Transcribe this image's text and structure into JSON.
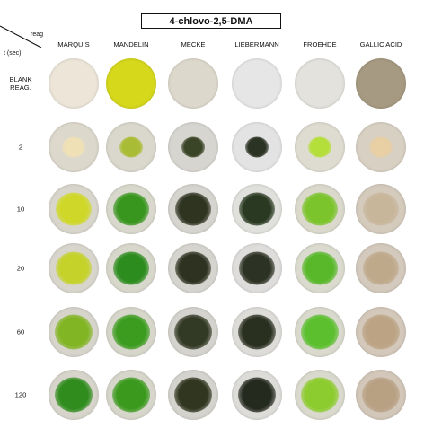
{
  "title": "4-chlovo-2,5-DMA",
  "corner": {
    "reag": "reag",
    "t": "t (sec)"
  },
  "reagents": [
    "MARQUIS",
    "MANDELIN",
    "MECKE",
    "LIEBERMANN",
    "FROEHDE",
    "GALLIC ACID"
  ],
  "rows": [
    {
      "label": "BLANK\nREAG.",
      "dishes": [
        {
          "bg": "#ece5d8",
          "blob": null
        },
        {
          "bg": "#d6d81c",
          "blob": null
        },
        {
          "bg": "#ddd8cc",
          "blob": null
        },
        {
          "bg": "#e6e6e6",
          "blob": null
        },
        {
          "bg": "#e3e2dc",
          "blob": null
        },
        {
          "bg": "#a79a82",
          "blob": null
        }
      ]
    },
    {
      "label": "2",
      "dishes": [
        {
          "bg": "#ddd8cc",
          "blob": "#efe0b6"
        },
        {
          "bg": "#dad8cc",
          "blob": "#a9bc35"
        },
        {
          "bg": "#d7d5cf",
          "blob": "#3a4426"
        },
        {
          "bg": "#e3e3e3",
          "blob": "#2b3324"
        },
        {
          "bg": "#dedcd0",
          "blob": "#b4de3a"
        },
        {
          "bg": "#d8d0c2",
          "blob": "#e8cfa4"
        }
      ]
    },
    {
      "label": "10",
      "dishes": [
        {
          "bg": "#d8d6cc",
          "blob": "#cfd829"
        },
        {
          "bg": "#d9d8cc",
          "blob": "#38961e"
        },
        {
          "bg": "#d6d4ce",
          "blob": "#2f3421"
        },
        {
          "bg": "#e0e0dc",
          "blob": "#2a3a22"
        },
        {
          "bg": "#dad9cc",
          "blob": "#7cc42c"
        },
        {
          "bg": "#d4cbbd",
          "blob": "#c8b69b"
        }
      ]
    },
    {
      "label": "20",
      "dishes": [
        {
          "bg": "#d8d6cc",
          "blob": "#c5d22a"
        },
        {
          "bg": "#d8d7cc",
          "blob": "#2c8c1e"
        },
        {
          "bg": "#d6d4ce",
          "blob": "#2e3220"
        },
        {
          "bg": "#dedddb",
          "blob": "#2d3324"
        },
        {
          "bg": "#dadace",
          "blob": "#58b82a"
        },
        {
          "bg": "#d3c9bc",
          "blob": "#bfa98b"
        }
      ]
    },
    {
      "label": "60",
      "dishes": [
        {
          "bg": "#d7d5cb",
          "blob": "#82b524"
        },
        {
          "bg": "#d7d6cb",
          "blob": "#3c9c1f"
        },
        {
          "bg": "#d5d3cd",
          "blob": "#323924"
        },
        {
          "bg": "#dddcd9",
          "blob": "#2a3020"
        },
        {
          "bg": "#d9d9cd",
          "blob": "#5bbf2e"
        },
        {
          "bg": "#d3c8ba",
          "blob": "#bba384"
        }
      ]
    },
    {
      "label": "120",
      "dishes": [
        {
          "bg": "#d7d5cb",
          "blob": "#2f8c1d"
        },
        {
          "bg": "#d7d6cb",
          "blob": "#3b9a1d"
        },
        {
          "bg": "#d5d3cd",
          "blob": "#30361f"
        },
        {
          "bg": "#dddcd9",
          "blob": "#252a1e"
        },
        {
          "bg": "#d9d9cd",
          "blob": "#8ccc2e"
        },
        {
          "bg": "#d2c7b9",
          "blob": "#b8a083"
        }
      ]
    }
  ]
}
